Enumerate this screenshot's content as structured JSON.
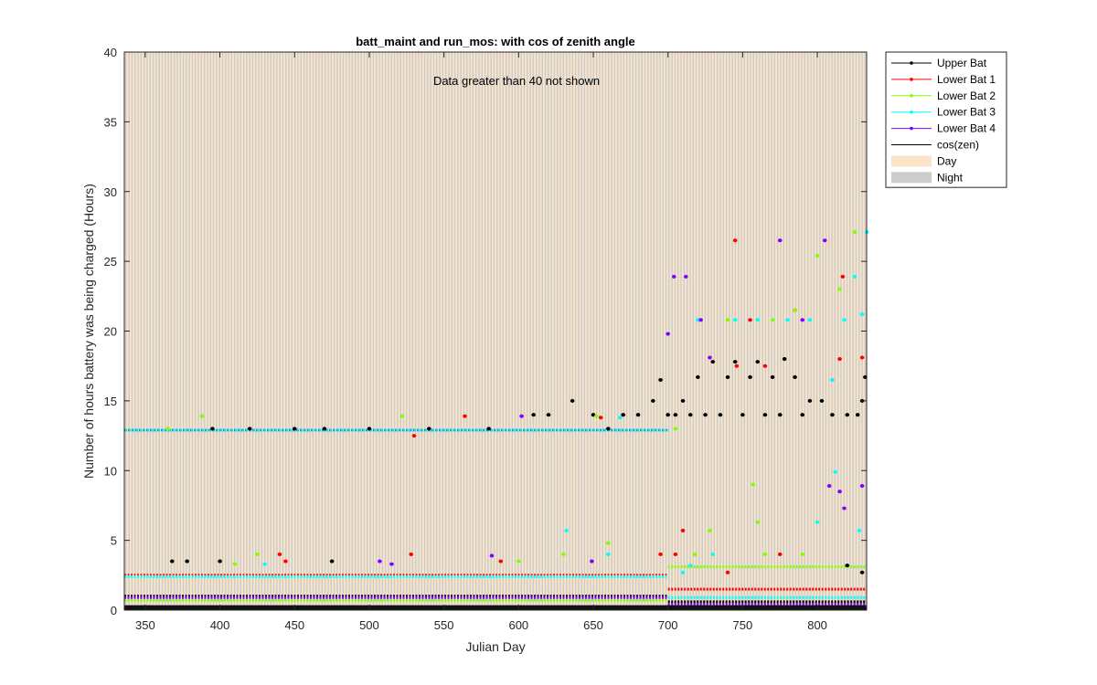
{
  "chart_data": {
    "type": "scatter",
    "title": "batt_maint and run_mos: with cos of zenith angle",
    "xlabel": "Julian Day",
    "ylabel": "Number of hours battery was being charged (Hours)",
    "annotation": "Data greater than 40 not shown",
    "xlim": [
      336,
      833
    ],
    "ylim": [
      0,
      40
    ],
    "xticks": [
      350,
      400,
      450,
      500,
      550,
      600,
      650,
      700,
      750,
      800
    ],
    "yticks": [
      0,
      5,
      10,
      15,
      20,
      25,
      30,
      35,
      40
    ],
    "grid": false,
    "legend_position": "outside-top-right",
    "background": {
      "day_color": "#fbe5c8",
      "night_color": "#cccccc"
    },
    "series": [
      {
        "name": "Upper Bat",
        "color": "#000000",
        "marker": "dot",
        "line": true,
        "points": [
          [
            368,
            3.5
          ],
          [
            378,
            3.5
          ],
          [
            400,
            3.5
          ],
          [
            475,
            3.5
          ],
          [
            395,
            13.0
          ],
          [
            420,
            13.0
          ],
          [
            450,
            13.0
          ],
          [
            470,
            13.0
          ],
          [
            500,
            13.0
          ],
          [
            540,
            13.0
          ],
          [
            580,
            13.0
          ],
          [
            610,
            14.0
          ],
          [
            620,
            14.0
          ],
          [
            636,
            15.0
          ],
          [
            650,
            14.0
          ],
          [
            660,
            13.0
          ],
          [
            670,
            14.0
          ],
          [
            680,
            14.0
          ],
          [
            690,
            15.0
          ],
          [
            695,
            16.5
          ],
          [
            700,
            14.0
          ],
          [
            705,
            14.0
          ],
          [
            710,
            15.0
          ],
          [
            715,
            14.0
          ],
          [
            720,
            16.7
          ],
          [
            725,
            14.0
          ],
          [
            730,
            17.8
          ],
          [
            735,
            14.0
          ],
          [
            740,
            16.7
          ],
          [
            745,
            17.8
          ],
          [
            750,
            14.0
          ],
          [
            755,
            16.7
          ],
          [
            760,
            17.8
          ],
          [
            765,
            14.0
          ],
          [
            770,
            16.7
          ],
          [
            775,
            14.0
          ],
          [
            778,
            18.0
          ],
          [
            785,
            16.7
          ],
          [
            790,
            14.0
          ],
          [
            795,
            15.0
          ],
          [
            803,
            15.0
          ],
          [
            810,
            14.0
          ],
          [
            820,
            14.0
          ],
          [
            827,
            14.0
          ],
          [
            830,
            15.0
          ],
          [
            832,
            16.7
          ],
          [
            820,
            3.2
          ],
          [
            830,
            2.7
          ]
        ]
      },
      {
        "name": "Lower Bat 1",
        "color": "#ff0000",
        "marker": "dot",
        "line": true,
        "points": [
          [
            440,
            4.0
          ],
          [
            444,
            3.5
          ],
          [
            528,
            4.0
          ],
          [
            530,
            12.5
          ],
          [
            564,
            13.9
          ],
          [
            588,
            3.5
          ],
          [
            655,
            13.8
          ],
          [
            695,
            4.0
          ],
          [
            705,
            4.0
          ],
          [
            710,
            5.7
          ],
          [
            740,
            2.7
          ],
          [
            745,
            26.5
          ],
          [
            746,
            17.5
          ],
          [
            755,
            20.8
          ],
          [
            765,
            17.5
          ],
          [
            775,
            4.0
          ],
          [
            785,
            21.5
          ],
          [
            815,
            18.0
          ],
          [
            817,
            23.9
          ],
          [
            830,
            18.1
          ]
        ]
      },
      {
        "name": "Lower Bat 2",
        "color": "#80ff00",
        "marker": "dot",
        "line": true,
        "points": [
          [
            365,
            13.0
          ],
          [
            388,
            13.9
          ],
          [
            410,
            3.3
          ],
          [
            425,
            4.0
          ],
          [
            522,
            13.9
          ],
          [
            600,
            3.5
          ],
          [
            630,
            4.0
          ],
          [
            652,
            13.9
          ],
          [
            660,
            4.8
          ],
          [
            705,
            13.0
          ],
          [
            718,
            4.0
          ],
          [
            728,
            5.7
          ],
          [
            730,
            4.0
          ],
          [
            740,
            20.8
          ],
          [
            757,
            9.0
          ],
          [
            760,
            6.3
          ],
          [
            765,
            4.0
          ],
          [
            770,
            20.8
          ],
          [
            785,
            21.5
          ],
          [
            790,
            4.0
          ],
          [
            800,
            25.4
          ],
          [
            815,
            23.0
          ],
          [
            825,
            27.1
          ]
        ]
      },
      {
        "name": "Lower Bat 3",
        "color": "#00ffff",
        "marker": "dot",
        "line": true,
        "points": [
          [
            430,
            3.3
          ],
          [
            632,
            5.7
          ],
          [
            660,
            4.0
          ],
          [
            668,
            13.8
          ],
          [
            710,
            2.7
          ],
          [
            715,
            3.2
          ],
          [
            720,
            20.8
          ],
          [
            730,
            4.0
          ],
          [
            745,
            20.8
          ],
          [
            760,
            20.8
          ],
          [
            780,
            20.8
          ],
          [
            795,
            20.8
          ],
          [
            800,
            6.3
          ],
          [
            810,
            16.5
          ],
          [
            812,
            9.9
          ],
          [
            818,
            20.8
          ],
          [
            825,
            23.9
          ],
          [
            828,
            5.7
          ],
          [
            830,
            21.2
          ],
          [
            833,
            27.1
          ]
        ]
      },
      {
        "name": "Lower Bat 4",
        "color": "#8000ff",
        "marker": "dot",
        "line": true,
        "points": [
          [
            507,
            3.5
          ],
          [
            515,
            3.3
          ],
          [
            582,
            3.9
          ],
          [
            602,
            13.9
          ],
          [
            649,
            3.5
          ],
          [
            700,
            19.8
          ],
          [
            704,
            23.9
          ],
          [
            712,
            23.9
          ],
          [
            722,
            20.8
          ],
          [
            728,
            18.1
          ],
          [
            775,
            26.5
          ],
          [
            790,
            20.8
          ],
          [
            805,
            26.5
          ],
          [
            808,
            8.9
          ],
          [
            815,
            8.5
          ],
          [
            818,
            7.3
          ],
          [
            830,
            8.9
          ]
        ]
      },
      {
        "name": "cos(zen)",
        "color": "#000000",
        "marker": "none",
        "line": true,
        "points": []
      }
    ],
    "bands": [
      {
        "name": "Upper Bat",
        "color": "#000000",
        "segments": [
          [
            336,
            700,
            1.0
          ],
          [
            700,
            833,
            0.6
          ]
        ]
      },
      {
        "name": "Lower Bat 1",
        "color": "#ff0000",
        "segments": [
          [
            336,
            700,
            2.5
          ],
          [
            700,
            833,
            1.5
          ]
        ]
      },
      {
        "name": "Lower Bat 2",
        "color": "#80ff00",
        "segments": [
          [
            336,
            700,
            0.7
          ],
          [
            700,
            833,
            3.1
          ]
        ]
      },
      {
        "name": "Lower Bat 3",
        "color": "#00ffff",
        "segments": [
          [
            336,
            700,
            2.4
          ],
          [
            700,
            833,
            0.9
          ]
        ]
      },
      {
        "name": "Lower Bat 4",
        "color": "#8000ff",
        "segments": [
          [
            336,
            700,
            0.9
          ],
          [
            700,
            833,
            0.4
          ]
        ]
      }
    ],
    "main_line": {
      "name": "Upper Bat",
      "segments": [
        [
          336,
          700,
          12.9
        ]
      ]
    },
    "legend_entries": [
      {
        "label": "Upper Bat",
        "color": "#000000",
        "kind": "line-marker"
      },
      {
        "label": "Lower Bat 1",
        "color": "#ff0000",
        "kind": "line-marker"
      },
      {
        "label": "Lower Bat 2",
        "color": "#80ff00",
        "kind": "line-marker"
      },
      {
        "label": "Lower Bat 3",
        "color": "#00ffff",
        "kind": "line-marker"
      },
      {
        "label": "Lower Bat 4",
        "color": "#8000ff",
        "kind": "line-marker"
      },
      {
        "label": "cos(zen)",
        "color": "#000000",
        "kind": "line"
      },
      {
        "label": "Day",
        "color": "#fbe5c8",
        "kind": "patch"
      },
      {
        "label": "Night",
        "color": "#cccccc",
        "kind": "patch"
      }
    ]
  }
}
